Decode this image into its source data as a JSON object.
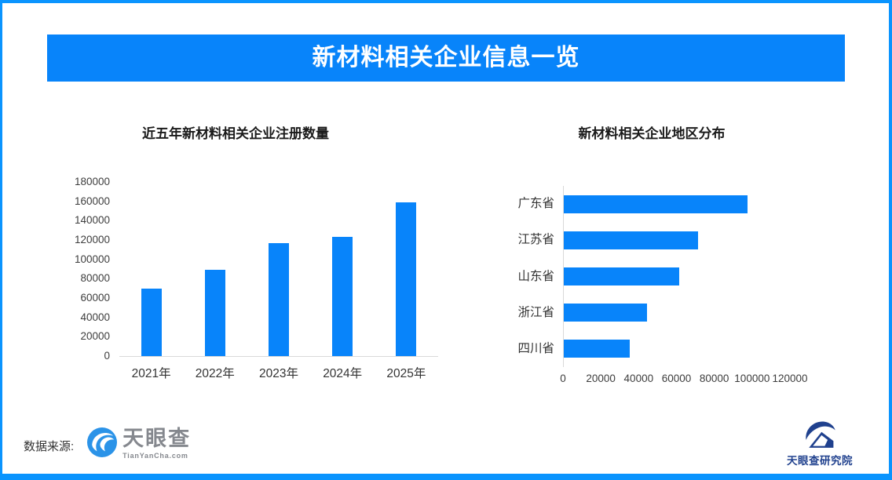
{
  "header": {
    "title": "新材料相关企业信息一览"
  },
  "chart_data": [
    {
      "type": "bar",
      "orientation": "vertical",
      "title": "近五年新材料相关企业注册数量",
      "categories": [
        "2021年",
        "2022年",
        "2023年",
        "2024年",
        "2025年"
      ],
      "values": [
        70000,
        89500,
        117000,
        123000,
        159000
      ],
      "ylim": [
        0,
        180000
      ],
      "yticks": [
        0,
        20000,
        40000,
        60000,
        80000,
        100000,
        120000,
        140000,
        160000,
        180000
      ],
      "grid": false,
      "legend": "none",
      "bar_color": "#0884fa"
    },
    {
      "type": "bar",
      "orientation": "horizontal",
      "title": "新材料相关企业地区分布",
      "categories": [
        "广东省",
        "江苏省",
        "山东省",
        "浙江省",
        "四川省"
      ],
      "values": [
        97000,
        71000,
        61000,
        44000,
        35000
      ],
      "xlim": [
        0,
        120000
      ],
      "xticks": [
        0,
        20000,
        40000,
        60000,
        80000,
        100000,
        120000
      ],
      "grid": false,
      "legend": "none",
      "bar_color": "#0884fa"
    }
  ],
  "footer": {
    "source_label": "数据来源:",
    "tianyancha_logo": {
      "icon": "tianyancha-eye-icon",
      "text": "天眼查",
      "subtext": "TianYanCha.com"
    },
    "research_logo": {
      "icon": "tianyancha-research-icon",
      "text": "天眼查研究院"
    }
  },
  "colors": {
    "accent_blue": "#0884fa",
    "border_blue": "#0a94fe",
    "title_text": "#1a1a1a",
    "axis_text": "#3d3d3d",
    "axis_line": "#d9d9d9",
    "logo_gray": "#85888e",
    "research_navy": "#20418e"
  }
}
